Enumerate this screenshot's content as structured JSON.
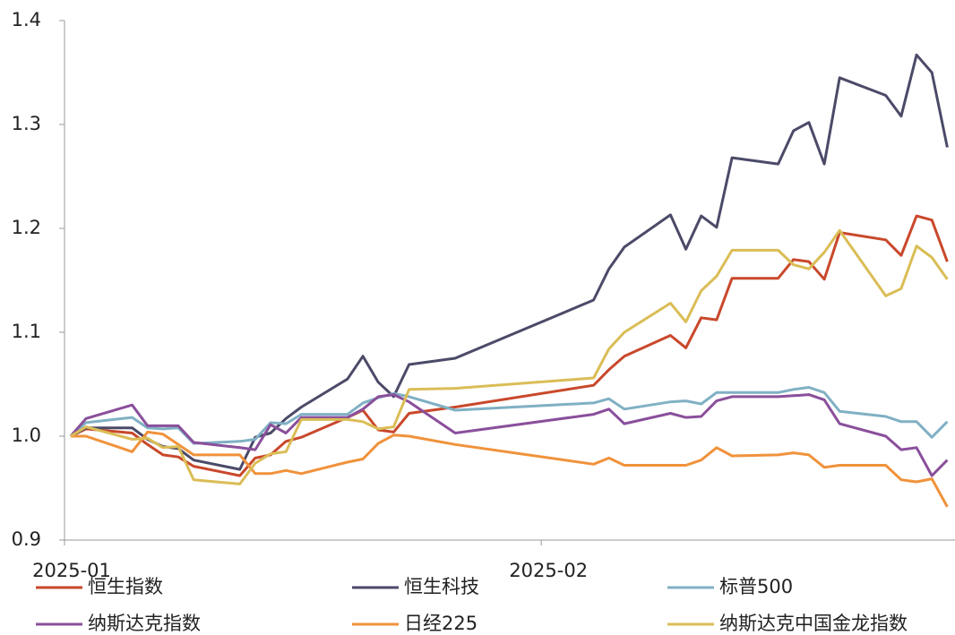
{
  "chart_data": {
    "type": "line",
    "x": [
      2,
      3,
      6,
      7,
      8,
      9,
      10,
      13,
      14,
      15,
      16,
      17,
      20,
      21,
      22,
      23,
      24,
      27,
      36,
      37,
      38,
      41,
      42,
      43,
      44,
      45,
      48,
      49,
      50,
      51,
      52,
      55,
      56,
      57,
      58,
      59
    ],
    "xlim": [
      1.6,
      59.5
    ],
    "xticks": [
      {
        "value": 1.6,
        "label": "2025-01"
      },
      {
        "value": 32.6,
        "label": "2025-02"
      }
    ],
    "ylim": [
      0.9,
      1.4
    ],
    "yticks": [
      0.9,
      {
        "value": 1,
        "label": "1.0"
      },
      1.1,
      1.2,
      1.3,
      1.4
    ],
    "grid": false,
    "legend": "bottom",
    "series": [
      {
        "name": "恒生指数",
        "color": "#c9482b",
        "values": [
          1.0,
          1.007,
          1.003,
          0.992,
          0.982,
          0.98,
          0.971,
          0.962,
          0.979,
          0.982,
          0.995,
          0.999,
          1.018,
          1.025,
          1.006,
          1.004,
          1.022,
          1.028,
          1.049,
          1.064,
          1.077,
          1.097,
          1.085,
          1.114,
          1.112,
          1.152,
          1.152,
          1.17,
          1.168,
          1.151,
          1.196,
          1.189,
          1.174,
          1.212,
          1.208,
          1.168
        ]
      },
      {
        "name": "恒生科技",
        "color": "#4b4a68",
        "values": [
          1.0,
          1.008,
          1.008,
          0.997,
          0.99,
          0.988,
          0.977,
          0.968,
          0.999,
          1.003,
          1.017,
          1.028,
          1.055,
          1.077,
          1.052,
          1.038,
          1.069,
          1.075,
          1.131,
          1.161,
          1.182,
          1.213,
          1.18,
          1.212,
          1.201,
          1.268,
          1.262,
          1.294,
          1.302,
          1.262,
          1.345,
          1.328,
          1.308,
          1.367,
          1.35,
          1.278
        ]
      },
      {
        "name": "标普500",
        "color": "#80b0c4",
        "values": [
          1.0,
          1.013,
          1.018,
          1.008,
          1.007,
          1.008,
          0.993,
          0.995,
          0.997,
          1.013,
          1.012,
          1.021,
          1.021,
          1.032,
          1.037,
          1.041,
          1.038,
          1.025,
          1.032,
          1.036,
          1.026,
          1.033,
          1.034,
          1.031,
          1.042,
          1.042,
          1.042,
          1.045,
          1.047,
          1.042,
          1.024,
          1.019,
          1.014,
          1.014,
          0.999,
          1.014
        ]
      },
      {
        "name": "纳斯达克指数",
        "color": "#8a4f9b",
        "values": [
          1.0,
          1.017,
          1.03,
          1.01,
          1.01,
          1.01,
          0.994,
          0.989,
          0.987,
          1.011,
          1.003,
          1.018,
          1.018,
          1.026,
          1.038,
          1.04,
          1.033,
          1.003,
          1.021,
          1.026,
          1.012,
          1.022,
          1.018,
          1.019,
          1.034,
          1.038,
          1.038,
          1.039,
          1.04,
          1.035,
          1.012,
          1.0,
          0.987,
          0.989,
          0.962,
          0.977
        ]
      },
      {
        "name": "日经225",
        "color": "#f0923b",
        "values": [
          1.0,
          1.0,
          0.985,
          1.004,
          1.002,
          0.992,
          0.982,
          0.982,
          0.964,
          0.964,
          0.967,
          0.964,
          0.975,
          0.978,
          0.993,
          1.001,
          1.0,
          0.992,
          0.973,
          0.979,
          0.972,
          0.972,
          0.972,
          0.977,
          0.989,
          0.981,
          0.982,
          0.984,
          0.982,
          0.97,
          0.972,
          0.972,
          0.958,
          0.956,
          0.959,
          0.932
        ]
      },
      {
        "name": "纳斯达克中国金龙指数",
        "color": "#dabd56",
        "values": [
          1.0,
          1.009,
          0.997,
          0.998,
          0.989,
          0.99,
          0.958,
          0.954,
          0.974,
          0.983,
          0.985,
          1.016,
          1.016,
          1.014,
          1.007,
          1.009,
          1.045,
          1.046,
          1.056,
          1.084,
          1.1,
          1.128,
          1.11,
          1.14,
          1.154,
          1.179,
          1.179,
          1.165,
          1.161,
          1.177,
          1.198,
          1.135,
          1.142,
          1.183,
          1.172,
          1.151
        ]
      }
    ]
  }
}
